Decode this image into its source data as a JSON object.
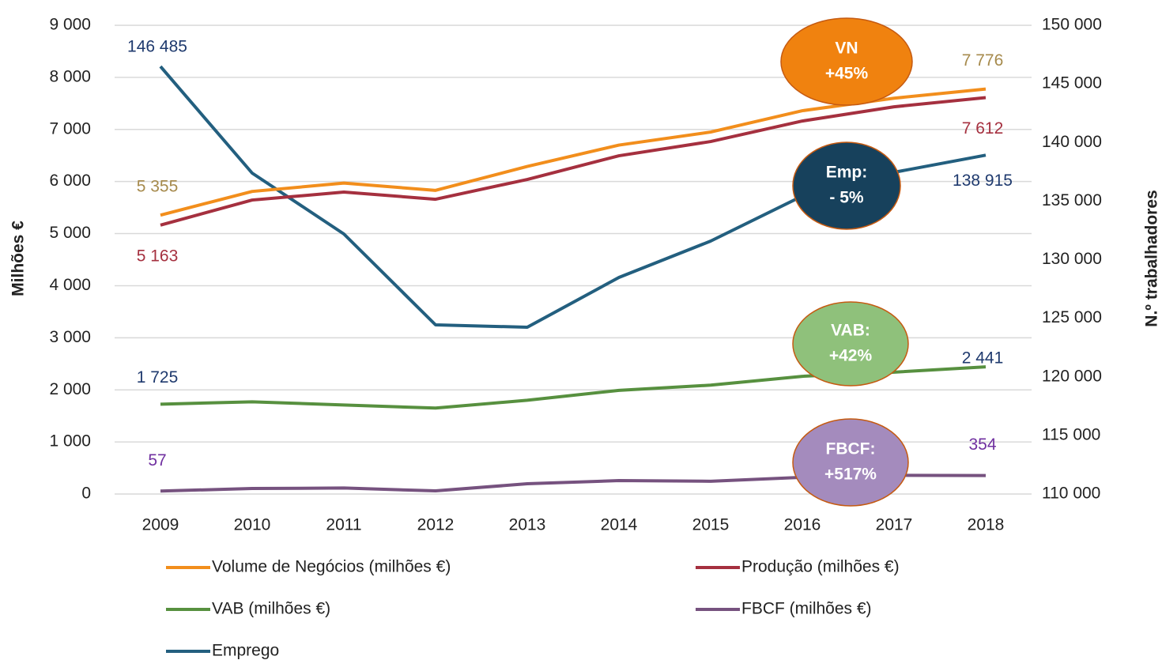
{
  "chart_data": {
    "type": "line",
    "categories": [
      "2009",
      "2010",
      "2011",
      "2012",
      "2013",
      "2014",
      "2015",
      "2016",
      "2017",
      "2018"
    ],
    "ylabel": "Milhões €",
    "y2label": "N.º trabalhadores",
    "ylim": [
      0,
      9000
    ],
    "yticks": [
      0,
      {
        "value": 1000,
        "label": "1 000"
      },
      {
        "value": 2000,
        "label": "2 000"
      },
      {
        "value": 3000,
        "label": "3 000"
      },
      {
        "value": 4000,
        "label": "4 000"
      },
      {
        "value": 5000,
        "label": "5 000"
      },
      {
        "value": 6000,
        "label": "6 000"
      },
      {
        "value": 7000,
        "label": "7 000"
      },
      {
        "value": 8000,
        "label": "8 000"
      },
      {
        "value": 9000,
        "label": "9 000"
      }
    ],
    "y2lim": [
      110000,
      150000
    ],
    "y2ticks": [
      {
        "value": 110000,
        "label": "110 000"
      },
      {
        "value": 115000,
        "label": "115 000"
      },
      {
        "value": 120000,
        "label": "120 000"
      },
      {
        "value": 125000,
        "label": "125 000"
      },
      {
        "value": 130000,
        "label": "130 000"
      },
      {
        "value": 135000,
        "label": "135 000"
      },
      {
        "value": 140000,
        "label": "140 000"
      },
      {
        "value": 145000,
        "label": "145 000"
      },
      {
        "value": 150000,
        "label": "150 000"
      }
    ],
    "grid": true,
    "legend": "bottom",
    "series": [
      {
        "name": "Volume de Negócios (milhões €)",
        "color": "#f28e1c",
        "label_color": "#a68a4c",
        "values": [
          5355,
          5810,
          5970,
          5830,
          6290,
          6700,
          6950,
          7360,
          7600,
          7776
        ],
        "value_labels": [
          "5 355",
          null,
          null,
          null,
          null,
          null,
          null,
          null,
          null,
          "7 776"
        ]
      },
      {
        "name": "Produção (milhões €)",
        "color": "#a5303f",
        "label_color": "#a5303f",
        "values": [
          5163,
          5645,
          5797,
          5660,
          6040,
          6495,
          6768,
          7162,
          7435,
          7612
        ],
        "value_labels": [
          "5 163",
          null,
          null,
          null,
          null,
          null,
          null,
          null,
          null,
          "7 612"
        ]
      },
      {
        "name": "VAB (milhões €)",
        "color": "#57903f",
        "label_color": "#1f3a6e",
        "values": [
          1725,
          1770,
          1710,
          1650,
          1800,
          1990,
          2090,
          2260,
          2340,
          2441
        ],
        "value_labels": [
          "1 725",
          null,
          null,
          null,
          null,
          null,
          null,
          null,
          null,
          "2 441"
        ]
      },
      {
        "name": "FBCF (milhões €)",
        "color": "#76527f",
        "label_color": "#7030a0",
        "values": [
          57,
          106,
          115,
          60,
          197,
          258,
          245,
          320,
          360,
          354
        ],
        "value_labels": [
          "57",
          null,
          null,
          null,
          null,
          null,
          null,
          null,
          null,
          "354"
        ]
      },
      {
        "name": "Emprego",
        "color": "#235f7f",
        "label_color": "#1f3a6e",
        "axis": "y2",
        "values": [
          146485,
          137386,
          132192,
          124435,
          124232,
          128482,
          131585,
          135430,
          137454,
          138915
        ],
        "value_labels": [
          "146 485",
          null,
          null,
          null,
          null,
          null,
          null,
          null,
          null,
          "138 915"
        ]
      }
    ],
    "annotations": [
      {
        "lines": [
          "VN",
          "+45%"
        ],
        "color": "#f0820f"
      },
      {
        "lines": [
          "Emp:",
          "- 5%"
        ],
        "color": "#17415c"
      },
      {
        "lines": [
          "VAB:",
          "+42%"
        ],
        "color": "#8fc17b"
      },
      {
        "lines": [
          "FBCF:",
          "+517%"
        ],
        "color": "#a48bbd"
      }
    ]
  }
}
